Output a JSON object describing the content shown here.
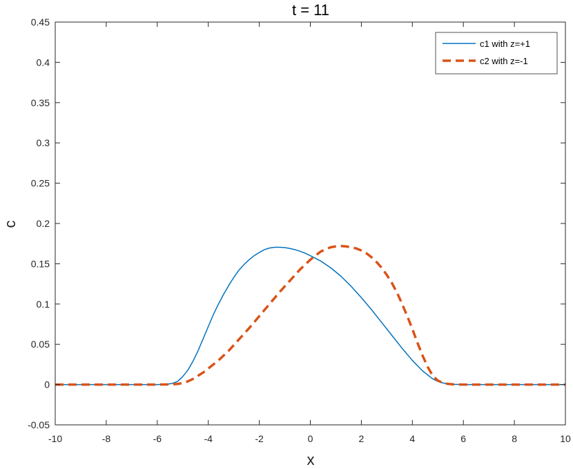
{
  "chart_data": {
    "type": "line",
    "title": "t = 11",
    "xlabel": "x",
    "ylabel": "c",
    "xlim": [
      -10,
      10
    ],
    "ylim": [
      -0.05,
      0.45
    ],
    "xticks": [
      -10,
      -8,
      -6,
      -4,
      -2,
      0,
      2,
      4,
      6,
      8,
      10
    ],
    "yticks": [
      -0.05,
      0,
      0.05,
      0.1,
      0.15,
      0.2,
      0.25,
      0.3,
      0.35,
      0.4,
      0.45
    ],
    "xtick_labels": [
      "-10",
      "-8",
      "-6",
      "-4",
      "-2",
      "0",
      "2",
      "4",
      "6",
      "8",
      "10"
    ],
    "ytick_labels": [
      "-0.05",
      "0",
      "0.05",
      "0.1",
      "0.15",
      "0.2",
      "0.25",
      "0.3",
      "0.35",
      "0.4",
      "0.45"
    ],
    "legend_position": "top-right",
    "grid": false,
    "series": [
      {
        "name": "c1 with z=+1",
        "color": "#0072BD",
        "style": "solid",
        "x": [
          -10,
          -8,
          -6,
          -5.6,
          -5.4,
          -5.2,
          -5.0,
          -4.8,
          -4.6,
          -4.4,
          -4.2,
          -4.0,
          -3.8,
          -3.6,
          -3.4,
          -3.2,
          -3.0,
          -2.8,
          -2.6,
          -2.4,
          -2.2,
          -2.0,
          -1.8,
          -1.6,
          -1.4,
          -1.2,
          -1.0,
          -0.8,
          -0.6,
          -0.4,
          -0.2,
          0.0,
          0.4,
          0.8,
          1.2,
          1.6,
          2.0,
          2.4,
          2.8,
          3.2,
          3.6,
          4.0,
          4.4,
          4.8,
          5.0,
          5.2,
          5.4,
          5.6,
          6,
          8,
          10
        ],
        "values": [
          0,
          0,
          0,
          0.0005,
          0.0015,
          0.004,
          0.01,
          0.018,
          0.029,
          0.042,
          0.057,
          0.072,
          0.087,
          0.1,
          0.112,
          0.123,
          0.133,
          0.142,
          0.149,
          0.155,
          0.16,
          0.164,
          0.1675,
          0.1695,
          0.1705,
          0.1705,
          0.17,
          0.169,
          0.1675,
          0.1655,
          0.163,
          0.16,
          0.1535,
          0.145,
          0.1345,
          0.122,
          0.108,
          0.093,
          0.077,
          0.061,
          0.045,
          0.03,
          0.017,
          0.007,
          0.004,
          0.002,
          0.0008,
          0.0003,
          0,
          0,
          0
        ]
      },
      {
        "name": "c2 with z=-1",
        "color": "#D95319",
        "style": "dashed",
        "x": [
          -10,
          -8,
          -6,
          -5.4,
          -5.2,
          -5.0,
          -4.8,
          -4.6,
          -4.4,
          -4.2,
          -4.0,
          -3.6,
          -3.2,
          -2.8,
          -2.4,
          -2.0,
          -1.6,
          -1.2,
          -0.8,
          -0.4,
          0.0,
          0.2,
          0.4,
          0.6,
          0.8,
          1.0,
          1.2,
          1.4,
          1.6,
          1.8,
          2.0,
          2.2,
          2.4,
          2.6,
          2.8,
          3.0,
          3.2,
          3.4,
          3.6,
          3.8,
          4.0,
          4.2,
          4.4,
          4.6,
          4.8,
          5.0,
          5.2,
          5.4,
          5.6,
          6,
          8,
          10
        ],
        "values": [
          0,
          0,
          0,
          0.0003,
          0.0008,
          0.002,
          0.004,
          0.007,
          0.011,
          0.015,
          0.02,
          0.03,
          0.042,
          0.056,
          0.07,
          0.085,
          0.1,
          0.115,
          0.129,
          0.143,
          0.155,
          0.16,
          0.165,
          0.168,
          0.1705,
          0.1715,
          0.172,
          0.1715,
          0.1705,
          0.169,
          0.1665,
          0.163,
          0.158,
          0.152,
          0.145,
          0.136,
          0.126,
          0.114,
          0.1,
          0.085,
          0.069,
          0.052,
          0.036,
          0.022,
          0.011,
          0.005,
          0.002,
          0.0008,
          0.0003,
          0,
          0,
          0
        ]
      }
    ]
  }
}
